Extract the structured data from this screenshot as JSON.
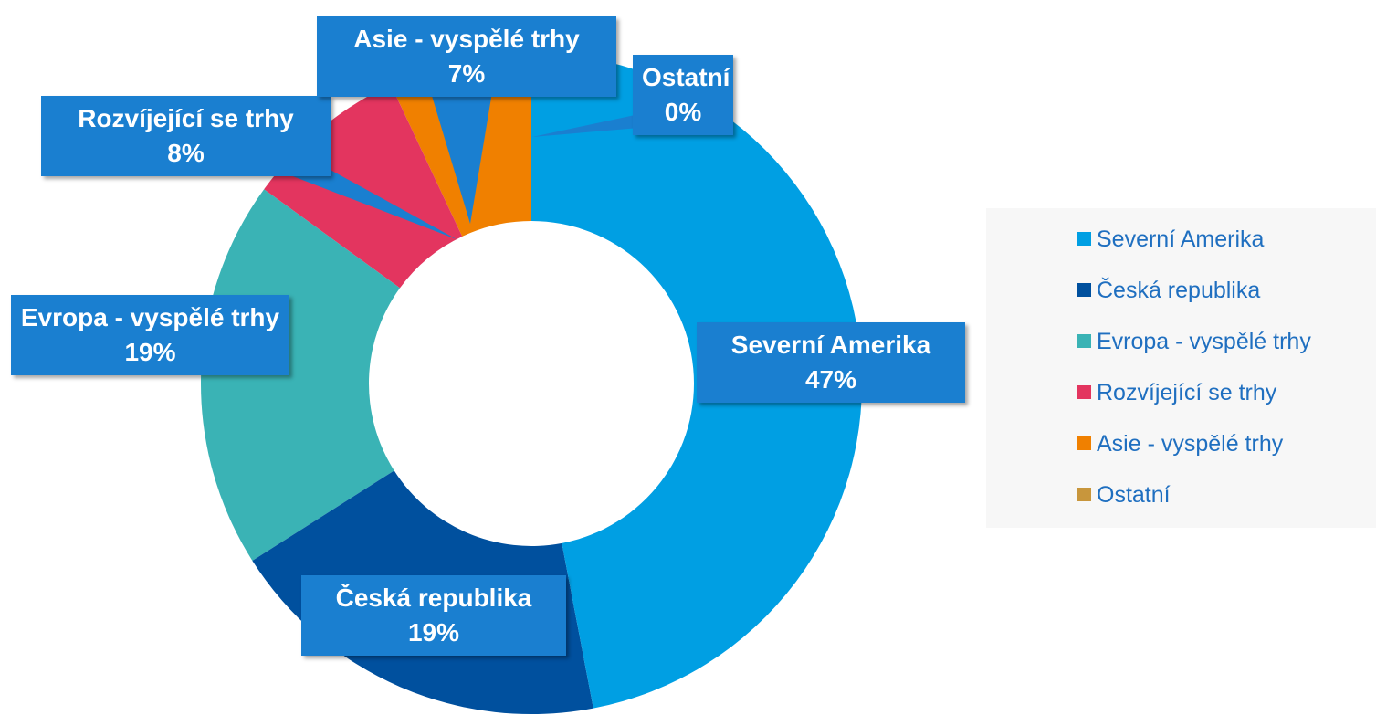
{
  "chart_data": {
    "type": "donut",
    "categories": [
      "Severní Amerika",
      "Česká republika",
      "Evropa - vyspělé trhy",
      "Rozvíjející se trhy",
      "Asie - vyspělé trhy",
      "Ostatní"
    ],
    "values": [
      47,
      19,
      19,
      8,
      7,
      0
    ],
    "value_labels": [
      "47%",
      "19%",
      "19%",
      "8%",
      "7%",
      "0%"
    ],
    "colors": [
      "#009fe3",
      "#00509e",
      "#3ab3b5",
      "#e3355f",
      "#f08000",
      "#c8963c"
    ],
    "legend": "right"
  }
}
